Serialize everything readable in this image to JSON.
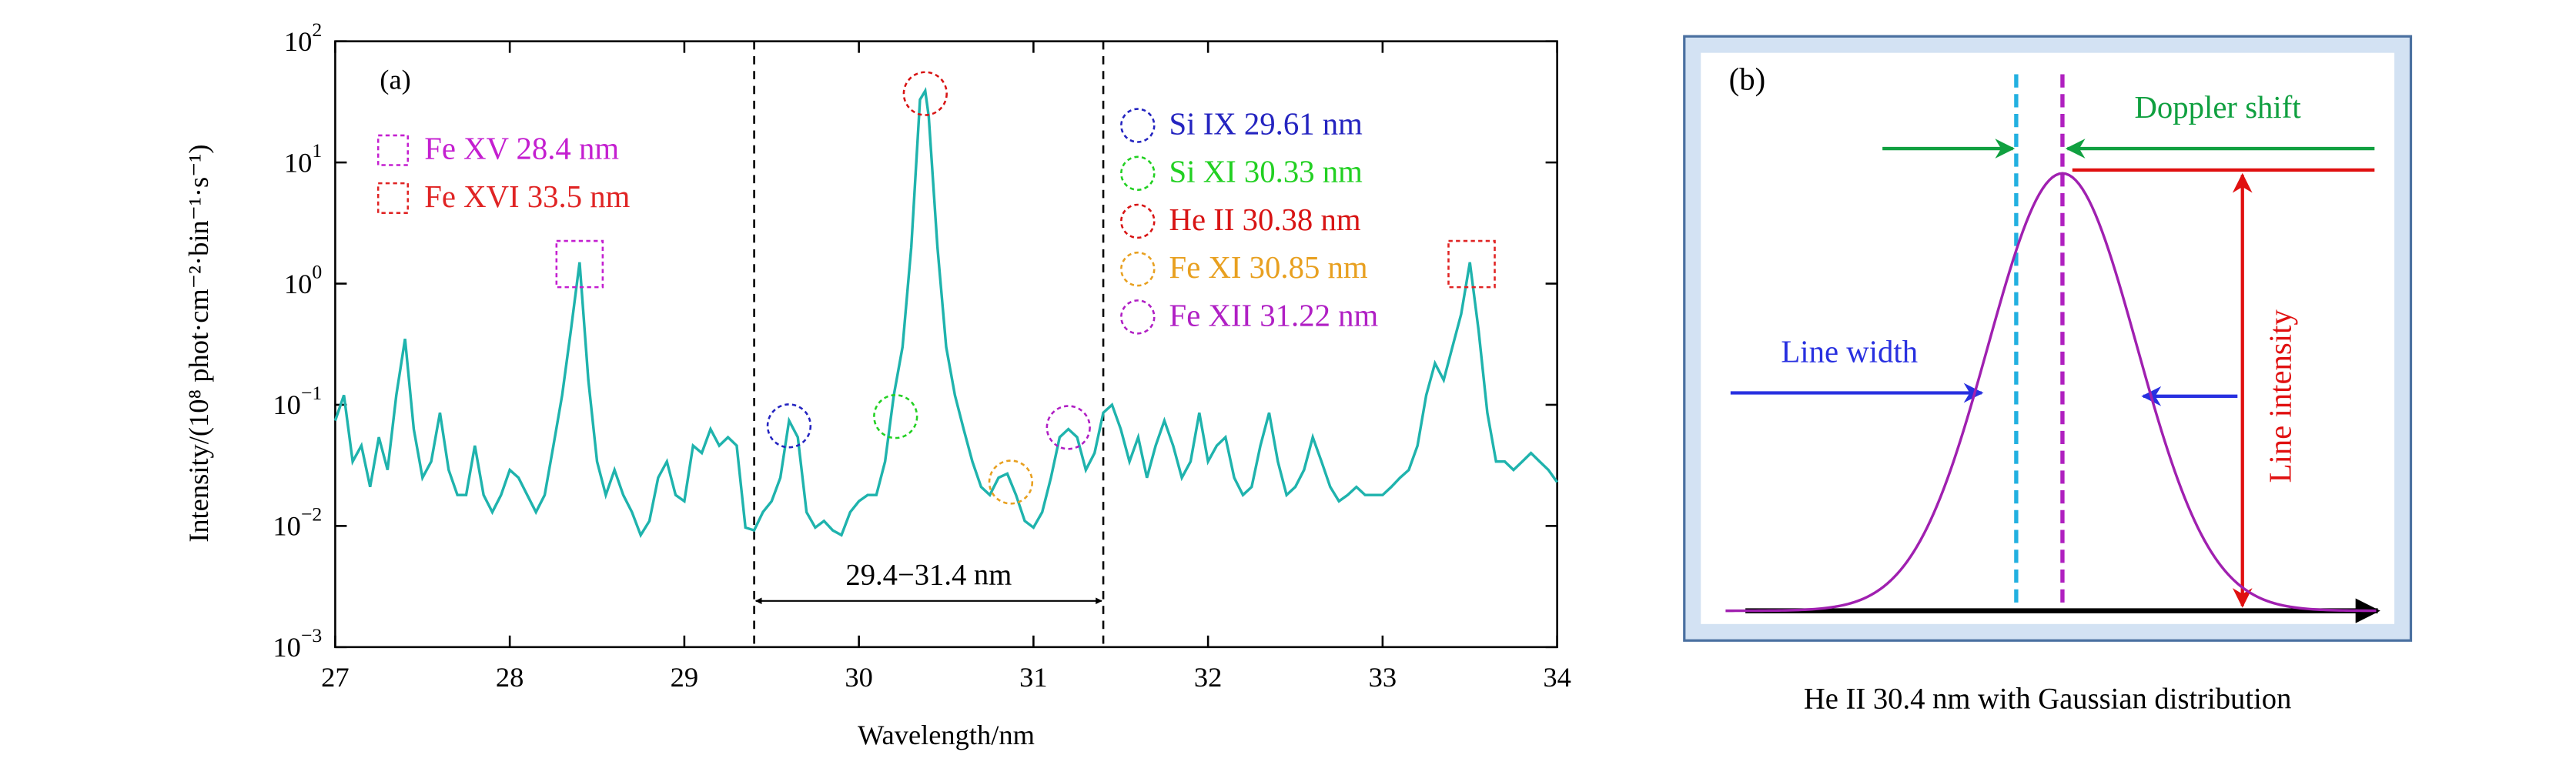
{
  "chart_data": [
    {
      "type": "line",
      "label": "(a)",
      "xlabel": "Wavelength/nm",
      "ylabel": "Intensity/(10⁸ phot·cm⁻²·bin⁻¹·s⁻¹)",
      "yscale": "log",
      "xlim": [
        27,
        34
      ],
      "ylim": [
        0.001,
        100
      ],
      "xticks": [
        27,
        28,
        29,
        30,
        31,
        32,
        33,
        34
      ],
      "yticks": [
        {
          "value": 0.001,
          "label": "10",
          "sup": "−3"
        },
        {
          "value": 0.01,
          "label": "10",
          "sup": "−2"
        },
        {
          "value": 0.1,
          "label": "10",
          "sup": "−1"
        },
        {
          "value": 1,
          "label": "10",
          "sup": "0"
        },
        {
          "value": 10,
          "label": "10",
          "sup": "1"
        },
        {
          "value": 100,
          "label": "10",
          "sup": "2"
        }
      ],
      "x": [
        27.0,
        27.05,
        27.1,
        27.15,
        27.2,
        27.25,
        27.3,
        27.35,
        27.4,
        27.45,
        27.5,
        27.55,
        27.6,
        27.65,
        27.7,
        27.75,
        27.8,
        27.85,
        27.9,
        27.95,
        28.0,
        28.05,
        28.1,
        28.15,
        28.2,
        28.25,
        28.3,
        28.35,
        28.4,
        28.45,
        28.5,
        28.55,
        28.6,
        28.65,
        28.7,
        28.75,
        28.8,
        28.85,
        28.9,
        28.95,
        29.0,
        29.05,
        29.1,
        29.15,
        29.2,
        29.25,
        29.3,
        29.35,
        29.4,
        29.45,
        29.5,
        29.55,
        29.6,
        29.65,
        29.7,
        29.75,
        29.8,
        29.85,
        29.9,
        29.95,
        30.0,
        30.05,
        30.1,
        30.15,
        30.2,
        30.25,
        30.3,
        30.35,
        30.38,
        30.4,
        30.45,
        30.5,
        30.55,
        30.6,
        30.65,
        30.7,
        30.75,
        30.8,
        30.85,
        30.9,
        30.95,
        31.0,
        31.05,
        31.1,
        31.15,
        31.2,
        31.25,
        31.3,
        31.35,
        31.4,
        31.45,
        31.5,
        31.55,
        31.6,
        31.65,
        31.7,
        31.75,
        31.8,
        31.85,
        31.9,
        31.95,
        32.0,
        32.05,
        32.1,
        32.15,
        32.2,
        32.25,
        32.3,
        32.35,
        32.4,
        32.45,
        32.5,
        32.55,
        32.6,
        32.65,
        32.7,
        32.75,
        32.8,
        32.85,
        32.9,
        32.95,
        33.0,
        33.05,
        33.1,
        33.15,
        33.2,
        33.25,
        33.3,
        33.35,
        33.4,
        33.45,
        33.5,
        33.55,
        33.6,
        33.65,
        33.7,
        33.75,
        33.8,
        33.85,
        33.9,
        33.95,
        34.0
      ],
      "series": [
        {
          "color": "#1fb3ad",
          "values": [
            0.074,
            0.12,
            0.034,
            0.046,
            0.021,
            0.054,
            0.029,
            0.12,
            0.35,
            0.063,
            0.025,
            0.034,
            0.086,
            0.029,
            0.018,
            0.018,
            0.046,
            0.018,
            0.013,
            0.018,
            0.029,
            0.025,
            0.018,
            0.013,
            0.018,
            0.046,
            0.12,
            0.41,
            1.5,
            0.16,
            0.034,
            0.018,
            0.029,
            0.018,
            0.013,
            0.0084,
            0.011,
            0.025,
            0.034,
            0.018,
            0.016,
            0.046,
            0.04,
            0.063,
            0.046,
            0.054,
            0.046,
            0.0097,
            0.0092,
            0.013,
            0.016,
            0.025,
            0.074,
            0.054,
            0.013,
            0.0097,
            0.011,
            0.0092,
            0.0084,
            0.013,
            0.016,
            0.018,
            0.018,
            0.034,
            0.12,
            0.3,
            2.0,
            33,
            39,
            24,
            2.0,
            0.3,
            0.12,
            0.063,
            0.034,
            0.021,
            0.018,
            0.025,
            0.027,
            0.018,
            0.011,
            0.0097,
            0.013,
            0.025,
            0.054,
            0.063,
            0.054,
            0.029,
            0.04,
            0.086,
            0.1,
            0.063,
            0.034,
            0.054,
            0.025,
            0.046,
            0.074,
            0.046,
            0.025,
            0.034,
            0.086,
            0.034,
            0.046,
            0.054,
            0.025,
            0.018,
            0.021,
            0.046,
            0.086,
            0.034,
            0.018,
            0.021,
            0.029,
            0.054,
            0.034,
            0.021,
            0.016,
            0.018,
            0.021,
            0.018,
            0.018,
            0.018,
            0.021,
            0.025,
            0.029,
            0.046,
            0.12,
            0.22,
            0.16,
            0.3,
            0.56,
            1.5,
            0.41,
            0.086,
            0.034,
            0.034,
            0.029,
            0.034,
            0.04,
            0.034,
            0.029,
            0.023
          ]
        }
      ],
      "band": {
        "range": [
          29.4,
          31.4
        ],
        "label": "29.4−31.4 nm"
      },
      "markers": [
        {
          "label": "Fe XV 28.4 nm",
          "shape": "square",
          "color": "#c41fd0",
          "x": 28.4,
          "y": 1.45
        },
        {
          "label": "Fe XVI 33.5 nm",
          "shape": "square",
          "color": "#e02424",
          "x": 33.51,
          "y": 1.45
        },
        {
          "label": "Si IX 29.61 nm",
          "shape": "circle",
          "color": "#2424c0",
          "x": 29.6,
          "y": 0.067
        },
        {
          "label": "Si XI 30.33 nm",
          "shape": "circle",
          "color": "#22d022",
          "x": 30.21,
          "y": 0.08
        },
        {
          "label": "He II 30.38 nm",
          "shape": "circle",
          "color": "#d81414",
          "x": 30.38,
          "y": 37
        },
        {
          "label": "Fe XI 30.85 nm",
          "shape": "circle",
          "color": "#e8a020",
          "x": 30.87,
          "y": 0.023
        },
        {
          "label": "Fe XII 31.22 nm",
          "shape": "circle",
          "color": "#b01fc4",
          "x": 31.2,
          "y": 0.065
        }
      ]
    },
    {
      "type": "diagram",
      "label": "(b)",
      "caption": "He II 30.4 nm with Gaussian distribution",
      "doppler": "Doppler shift",
      "width": "Line width",
      "intensity": "Line intensity",
      "color": "#a020b0"
    }
  ]
}
